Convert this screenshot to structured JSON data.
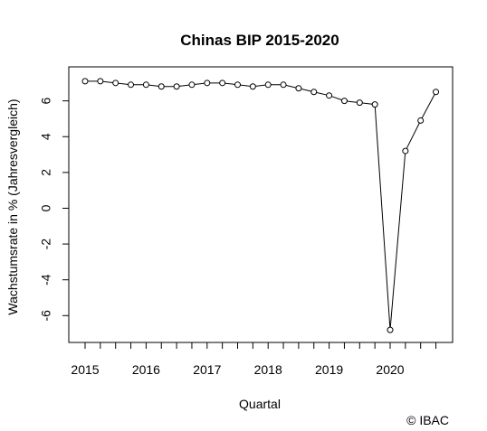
{
  "chart_data": {
    "type": "line",
    "title": "Chinas BIP 2015-2020",
    "xlabel": "Quartal",
    "ylabel": "Wachstumsrate in % (Jahresvergleich)",
    "categories": [
      "2015 Q1",
      "2015 Q2",
      "2015 Q3",
      "2015 Q4",
      "2016 Q1",
      "2016 Q2",
      "2016 Q3",
      "2016 Q4",
      "2017 Q1",
      "2017 Q2",
      "2017 Q3",
      "2017 Q4",
      "2018 Q1",
      "2018 Q2",
      "2018 Q3",
      "2018 Q4",
      "2019 Q1",
      "2019 Q2",
      "2019 Q3",
      "2019 Q4",
      "2020 Q1",
      "2020 Q2",
      "2020 Q3",
      "2020 Q4"
    ],
    "values": [
      7.1,
      7.1,
      7.0,
      6.9,
      6.9,
      6.8,
      6.8,
      6.9,
      7.0,
      7.0,
      6.9,
      6.8,
      6.9,
      6.9,
      6.7,
      6.5,
      6.3,
      6.0,
      5.9,
      5.8,
      -6.8,
      3.2,
      4.9,
      6.5
    ],
    "ylim": [
      -7.5,
      7.9
    ],
    "y_ticks": [
      "6",
      "4",
      "2",
      "0",
      "-2",
      "-4",
      "-6"
    ],
    "x_tick_labels": [
      "2015",
      "2016",
      "2017",
      "2018",
      "2019",
      "2020"
    ],
    "marker": "open-circle",
    "grid": false,
    "credit": "© IBAC"
  }
}
